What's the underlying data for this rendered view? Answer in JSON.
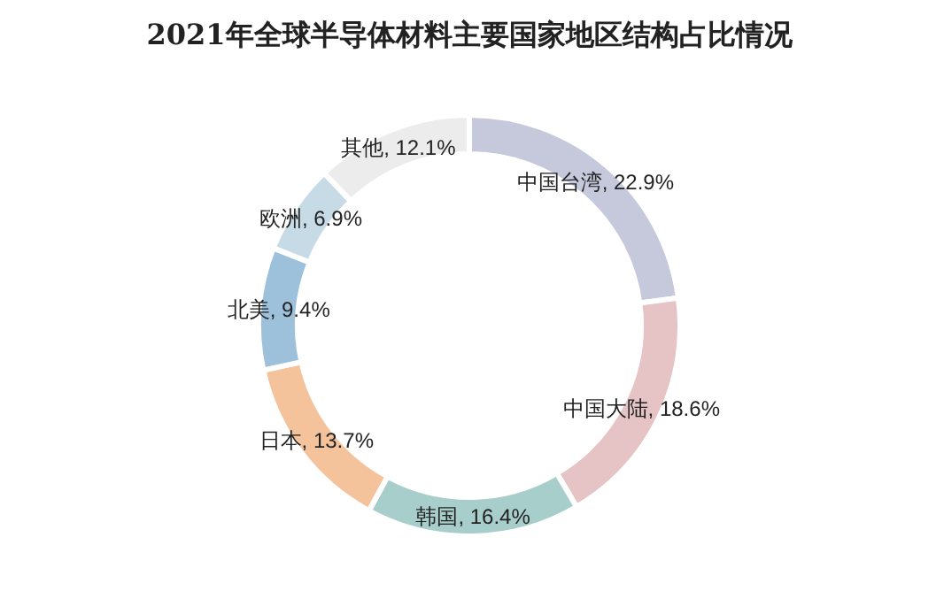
{
  "chart_data": {
    "type": "donut",
    "title": "2021年全球半导体材料主要国家地区结构占比情况",
    "categories": [
      "中国台湾",
      "中国大陆",
      "韩国",
      "日本",
      "北美",
      "欧洲",
      "其他"
    ],
    "values": [
      22.9,
      18.6,
      16.4,
      13.7,
      9.4,
      6.9,
      12.1
    ],
    "colors": [
      "#c6c8dc",
      "#e6c3c5",
      "#a8cecb",
      "#f4c39b",
      "#9dc1db",
      "#c7dbe6",
      "#ececec"
    ],
    "value_labels": [
      "22.9%",
      "18.6%",
      "16.4%",
      "13.7%",
      "9.4%",
      "6.9%",
      "12.1%"
    ]
  }
}
